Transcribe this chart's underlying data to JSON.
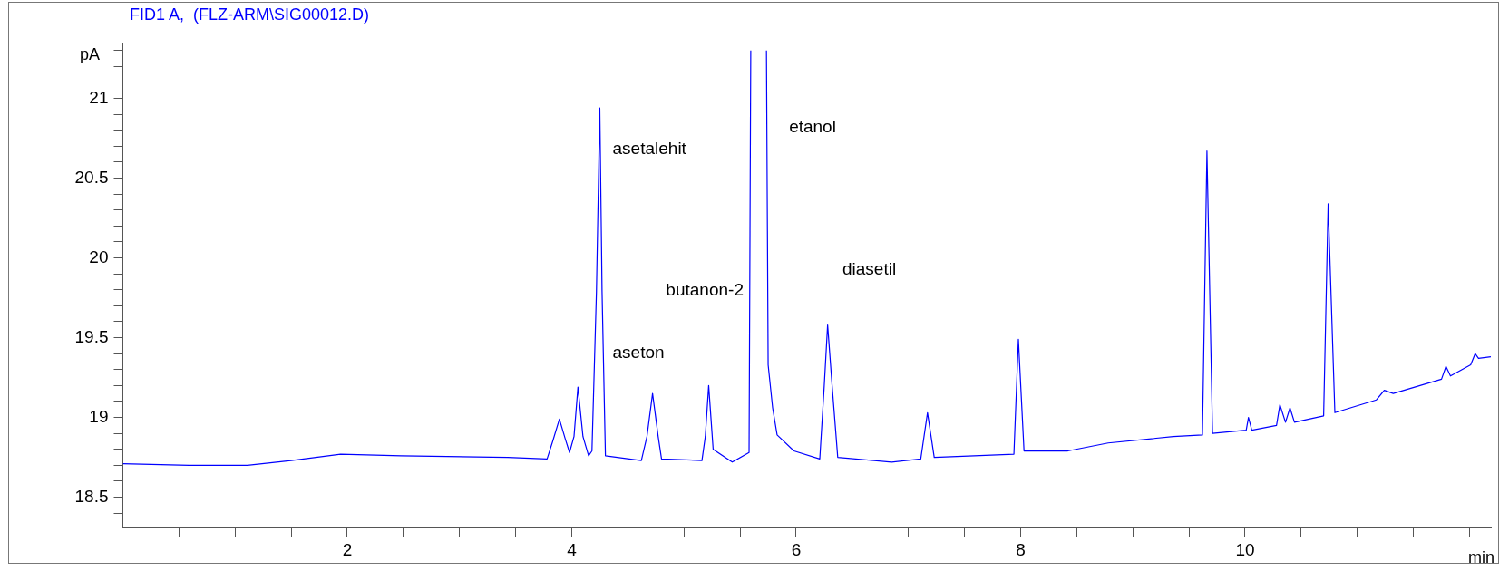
{
  "chart_data": {
    "type": "line",
    "title": "FID1 A,  (FLZ-ARM\\SIG00012.D)",
    "ylabel": "pA",
    "xlabel": "min",
    "xlim": [
      0,
      12.19
    ],
    "ylim": [
      18.31,
      21.35
    ],
    "xticks": [
      {
        "value": 0.5,
        "label": null
      },
      {
        "value": 1,
        "label": null
      },
      {
        "value": 1.5,
        "label": null
      },
      2,
      {
        "value": 2.5,
        "label": null
      },
      {
        "value": 3,
        "label": null
      },
      {
        "value": 3.5,
        "label": null
      },
      4,
      {
        "value": 4.5,
        "label": null
      },
      {
        "value": 5,
        "label": null
      },
      {
        "value": 5.5,
        "label": null
      },
      6,
      {
        "value": 6.5,
        "label": null
      },
      {
        "value": 7,
        "label": null
      },
      {
        "value": 7.5,
        "label": null
      },
      8,
      {
        "value": 8.5,
        "label": null
      },
      {
        "value": 9,
        "label": null
      },
      {
        "value": 9.5,
        "label": null
      },
      10,
      {
        "value": 10.5,
        "label": null
      },
      {
        "value": 11,
        "label": null
      },
      {
        "value": 11.5,
        "label": null
      },
      {
        "value": 12,
        "label": null
      }
    ],
    "yticks": [
      {
        "value": 18.4,
        "label": null
      },
      18.5,
      {
        "value": 18.6,
        "label": null
      },
      {
        "value": 18.7,
        "label": null
      },
      {
        "value": 18.8,
        "label": null
      },
      {
        "value": 18.9,
        "label": null
      },
      19,
      {
        "value": 19.1,
        "label": null
      },
      {
        "value": 19.2,
        "label": null
      },
      {
        "value": 19.3,
        "label": null
      },
      {
        "value": 19.4,
        "label": null
      },
      19.5,
      {
        "value": 19.6,
        "label": null
      },
      {
        "value": 19.7,
        "label": null
      },
      {
        "value": 19.8,
        "label": null
      },
      {
        "value": 19.9,
        "label": null
      },
      20,
      {
        "value": 20.1,
        "label": null
      },
      {
        "value": 20.2,
        "label": null
      },
      {
        "value": 20.3,
        "label": null
      },
      {
        "value": 20.4,
        "label": null
      },
      20.5,
      {
        "value": 20.6,
        "label": null
      },
      {
        "value": 20.7,
        "label": null
      },
      {
        "value": 20.8,
        "label": null
      },
      {
        "value": 20.9,
        "label": null
      },
      21,
      {
        "value": 21.1,
        "label": null
      },
      {
        "value": 21.2,
        "label": null
      },
      {
        "value": 21.3,
        "label": null
      }
    ],
    "grid": false,
    "legend": false,
    "marker": "none",
    "line_style": "solid",
    "annotations": [
      "asetalehit",
      "aseton",
      "butanon-2",
      "etanol",
      "diasetil"
    ],
    "series": [
      {
        "color": "#0000ff",
        "x": [
          0,
          0.59,
          1.11,
          1.5,
          1.94,
          2.48,
          3.43,
          3.78,
          3.83,
          3.89,
          3.94,
          3.98,
          4.02,
          4.055,
          4.1,
          4.15,
          4.18,
          4.22,
          4.25,
          4.27,
          4.3,
          4.62,
          4.67,
          4.72,
          4.77,
          4.8,
          5.16,
          5.19,
          5.22,
          5.26,
          5.43,
          5.58,
          5.595,
          5.665,
          5.735,
          5.75,
          5.79,
          5.83,
          5.98,
          6.21,
          6.25,
          6.28,
          6.32,
          6.37,
          6.85,
          7.11,
          7.17,
          7.23,
          7.94,
          7.98,
          8.03,
          8.42,
          8.78,
          9.36,
          9.62,
          9.66,
          9.71,
          10.01,
          10.03,
          10.06,
          10.28,
          10.31,
          10.36,
          10.4,
          10.44,
          10.7,
          10.74,
          10.8,
          11.17,
          11.24,
          11.32,
          11.75,
          11.79,
          11.83,
          12.01,
          12.05,
          12.08,
          12.19
        ],
        "values": [
          18.71,
          18.7,
          18.7,
          18.73,
          18.77,
          18.76,
          18.75,
          18.74,
          18.85,
          18.99,
          18.87,
          18.78,
          18.88,
          19.19,
          18.88,
          18.76,
          18.79,
          19.79,
          20.94,
          19.79,
          18.76,
          18.73,
          18.88,
          19.15,
          18.88,
          18.74,
          18.73,
          18.88,
          19.2,
          18.8,
          18.72,
          18.78,
          21.3,
          null,
          21.3,
          19.33,
          19.06,
          18.89,
          18.79,
          18.74,
          19.2,
          19.58,
          19.2,
          18.75,
          18.72,
          18.74,
          19.03,
          18.75,
          18.77,
          19.49,
          18.79,
          18.79,
          18.84,
          18.88,
          18.89,
          20.67,
          18.9,
          18.92,
          19.0,
          18.92,
          18.95,
          19.08,
          18.97,
          19.06,
          18.97,
          19.01,
          20.34,
          19.03,
          19.11,
          19.17,
          19.15,
          19.24,
          19.32,
          19.26,
          19.33,
          19.4,
          19.37,
          19.38
        ]
      }
    ]
  }
}
